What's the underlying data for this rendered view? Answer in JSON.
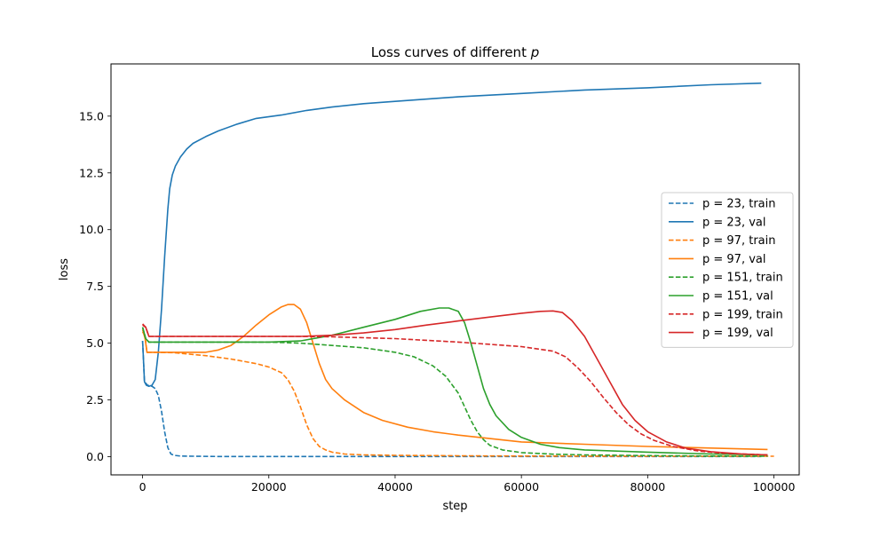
{
  "chart_data": {
    "type": "line",
    "title": "Loss curves of different ",
    "title_var": "p",
    "xlabel": "step",
    "ylabel": "loss",
    "xlim": [
      -5000,
      104000
    ],
    "ylim": [
      -0.8,
      17.3
    ],
    "xticks": [
      0,
      20000,
      40000,
      60000,
      80000,
      100000
    ],
    "xtick_labels": [
      "0",
      "20000",
      "40000",
      "60000",
      "80000",
      "100000"
    ],
    "yticks": [
      0,
      2.5,
      5,
      7.5,
      10,
      12.5,
      15
    ],
    "ytick_labels": [
      "0.0",
      "2.5",
      "5.0",
      "7.5",
      "10.0",
      "12.5",
      "15.0"
    ],
    "grid": false,
    "legend_position": "center-right",
    "series": [
      {
        "name": "p = 23, train",
        "color": "#1f77b4",
        "style": "dashed",
        "x": [
          0,
          300,
          800,
          1500,
          2000,
          2500,
          3000,
          3500,
          4000,
          4500,
          5000,
          6000,
          8000,
          12000,
          20000,
          40000,
          60000,
          80000,
          98000
        ],
        "y": [
          5.1,
          3.3,
          3.15,
          3.1,
          3.0,
          2.7,
          2.0,
          1.1,
          0.4,
          0.12,
          0.06,
          0.03,
          0.02,
          0.01,
          0.01,
          0.01,
          0.01,
          0.01,
          0.01
        ]
      },
      {
        "name": "p = 23, val",
        "color": "#1f77b4",
        "style": "solid",
        "x": [
          0,
          300,
          600,
          1000,
          1500,
          2000,
          2500,
          3000,
          3500,
          4000,
          4300,
          4700,
          5200,
          6000,
          7000,
          8000,
          10000,
          12000,
          15000,
          18000,
          22000,
          26000,
          30000,
          35000,
          40000,
          50000,
          60000,
          70000,
          80000,
          90000,
          98000
        ],
        "y": [
          5.1,
          3.3,
          3.15,
          3.1,
          3.15,
          3.4,
          4.6,
          6.5,
          8.8,
          10.9,
          11.8,
          12.4,
          12.8,
          13.2,
          13.55,
          13.8,
          14.1,
          14.35,
          14.65,
          14.9,
          15.05,
          15.25,
          15.4,
          15.55,
          15.65,
          15.85,
          16.0,
          16.15,
          16.25,
          16.38,
          16.45
        ]
      },
      {
        "name": "p = 97, train",
        "color": "#ff7f0e",
        "style": "dashed",
        "x": [
          0,
          400,
          700,
          1000,
          2000,
          5000,
          10000,
          14000,
          18000,
          20000,
          22000,
          23000,
          24000,
          25000,
          26000,
          27000,
          28000,
          29000,
          30000,
          32000,
          35000,
          40000,
          50000,
          60000,
          80000,
          100000
        ],
        "y": [
          5.5,
          5.3,
          4.6,
          4.6,
          4.6,
          4.58,
          4.45,
          4.3,
          4.1,
          3.95,
          3.7,
          3.4,
          2.9,
          2.2,
          1.4,
          0.8,
          0.45,
          0.3,
          0.2,
          0.12,
          0.08,
          0.06,
          0.04,
          0.03,
          0.02,
          0.02
        ]
      },
      {
        "name": "p = 97, val",
        "color": "#ff7f0e",
        "style": "solid",
        "x": [
          0,
          400,
          700,
          1000,
          3000,
          6000,
          10000,
          12000,
          14000,
          16000,
          18000,
          20000,
          22000,
          23000,
          24000,
          25000,
          26000,
          27000,
          28000,
          29000,
          30000,
          32000,
          35000,
          38000,
          42000,
          46000,
          50000,
          55000,
          60000,
          70000,
          80000,
          90000,
          99000
        ],
        "y": [
          5.6,
          5.2,
          4.6,
          4.6,
          4.6,
          4.6,
          4.6,
          4.7,
          4.9,
          5.3,
          5.8,
          6.25,
          6.6,
          6.7,
          6.7,
          6.5,
          5.9,
          5.0,
          4.1,
          3.4,
          3.0,
          2.5,
          1.95,
          1.6,
          1.3,
          1.1,
          0.95,
          0.8,
          0.65,
          0.55,
          0.45,
          0.38,
          0.32
        ]
      },
      {
        "name": "p = 151, train",
        "color": "#2ca02c",
        "style": "dashed",
        "x": [
          0,
          500,
          1000,
          5000,
          10000,
          20000,
          25000,
          30000,
          35000,
          40000,
          43000,
          46000,
          48000,
          50000,
          51000,
          52000,
          53000,
          54000,
          55000,
          57000,
          60000,
          65000,
          70000,
          80000,
          90000,
          99000
        ],
        "y": [
          5.7,
          5.2,
          5.05,
          5.05,
          5.05,
          5.05,
          5.0,
          4.9,
          4.8,
          4.6,
          4.4,
          4.0,
          3.55,
          2.8,
          2.2,
          1.6,
          1.1,
          0.75,
          0.5,
          0.3,
          0.18,
          0.11,
          0.08,
          0.05,
          0.03,
          0.02
        ]
      },
      {
        "name": "p = 151, val",
        "color": "#2ca02c",
        "style": "solid",
        "x": [
          0,
          500,
          1000,
          5000,
          10000,
          20000,
          25000,
          30000,
          35000,
          40000,
          44000,
          47000,
          48500,
          50000,
          51000,
          52000,
          53000,
          54000,
          55000,
          56000,
          58000,
          60000,
          63000,
          66000,
          70000,
          80000,
          90000,
          99000
        ],
        "y": [
          5.7,
          5.2,
          5.05,
          5.05,
          5.05,
          5.05,
          5.1,
          5.35,
          5.7,
          6.05,
          6.4,
          6.55,
          6.55,
          6.4,
          5.9,
          5.0,
          4.0,
          3.0,
          2.3,
          1.8,
          1.2,
          0.85,
          0.55,
          0.4,
          0.3,
          0.2,
          0.12,
          0.08
        ]
      },
      {
        "name": "p = 199, train",
        "color": "#d62728",
        "style": "dashed",
        "x": [
          0,
          500,
          1000,
          1500,
          5000,
          15000,
          25000,
          30000,
          40000,
          50000,
          60000,
          65000,
          67000,
          69000,
          71000,
          73000,
          75000,
          77000,
          79000,
          81000,
          84000,
          88000,
          92000,
          99000
        ],
        "y": [
          5.85,
          5.7,
          5.3,
          5.3,
          5.3,
          5.3,
          5.3,
          5.28,
          5.2,
          5.05,
          4.85,
          4.65,
          4.4,
          3.9,
          3.3,
          2.6,
          1.95,
          1.4,
          1.0,
          0.72,
          0.45,
          0.25,
          0.15,
          0.08
        ]
      },
      {
        "name": "p = 199, val",
        "color": "#d62728",
        "style": "solid",
        "x": [
          0,
          500,
          1000,
          1500,
          5000,
          15000,
          25000,
          30000,
          35000,
          40000,
          45000,
          50000,
          55000,
          60000,
          63000,
          65000,
          66500,
          68000,
          70000,
          72000,
          74000,
          76000,
          78000,
          80000,
          83000,
          86000,
          90000,
          95000,
          99000
        ],
        "y": [
          5.8,
          5.7,
          5.3,
          5.3,
          5.3,
          5.3,
          5.3,
          5.35,
          5.45,
          5.6,
          5.8,
          5.98,
          6.15,
          6.32,
          6.4,
          6.42,
          6.35,
          6.0,
          5.3,
          4.3,
          3.3,
          2.3,
          1.6,
          1.1,
          0.65,
          0.38,
          0.22,
          0.12,
          0.08
        ]
      }
    ]
  }
}
